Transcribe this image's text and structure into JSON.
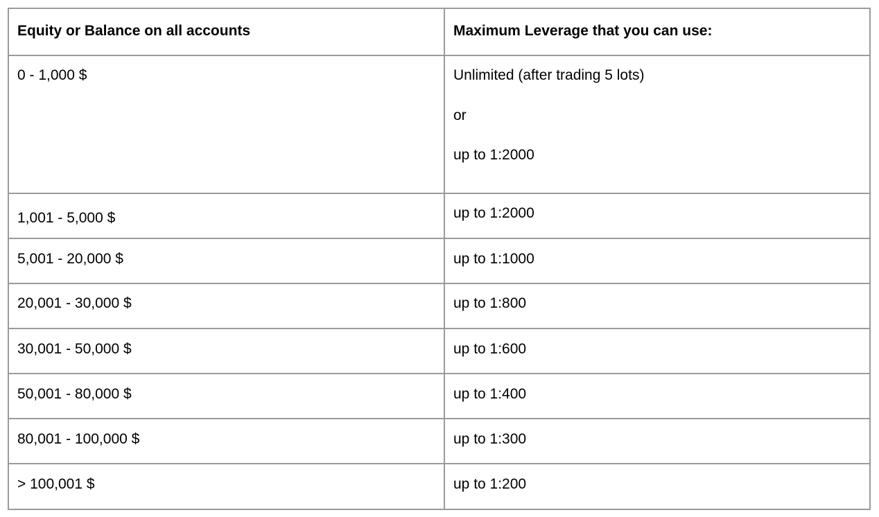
{
  "table": {
    "headers": [
      "Equity or Balance on all accounts",
      "Maximum Leverage that you can use:"
    ],
    "first_row": {
      "equity": "0 - 1,000 $",
      "leverage_lines": [
        "Unlimited (after trading 5 lots)",
        "or",
        "up to 1:2000"
      ]
    },
    "rows": [
      {
        "equity": "1,001 - 5,000 $",
        "leverage": "up to 1:2000"
      },
      {
        "equity": "5,001 - 20,000 $",
        "leverage": "up to 1:1000"
      },
      {
        "equity": "20,001 - 30,000 $",
        "leverage": "up to 1:800"
      },
      {
        "equity": "30,001 - 50,000 $",
        "leverage": "up to 1:600"
      },
      {
        "equity": "50,001 - 80,000 $",
        "leverage": "up to 1:400"
      },
      {
        "equity": "80,001 - 100,000 $",
        "leverage": "up to 1:300"
      },
      {
        "equity": "> 100,001 $",
        "leverage": "up to 1:200"
      }
    ]
  }
}
